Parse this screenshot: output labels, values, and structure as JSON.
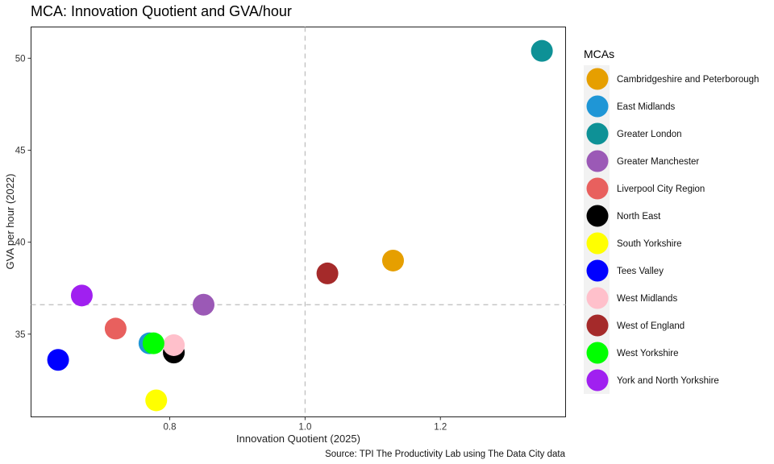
{
  "chart_data": {
    "type": "scatter",
    "title": "MCA: Innovation Quotient and GVA/hour",
    "xlabel": "Innovation Quotient (2025)",
    "ylabel": "GVA per hour (2022)",
    "xlim": [
      0.595,
      1.385
    ],
    "ylim": [
      30.5,
      51.7
    ],
    "x_ticks": [
      0.8,
      1.0,
      1.2
    ],
    "x_tick_labels": [
      "0.8",
      "1.0",
      "1.2"
    ],
    "y_ticks": [
      35,
      40,
      45,
      50
    ],
    "y_tick_labels": [
      "35",
      "40",
      "45",
      "50"
    ],
    "grid": false,
    "reference_lines": {
      "x": 1.0,
      "y": 36.6
    },
    "legend_title": "MCAs",
    "legend_position": "right",
    "caption": "Source: TPI The Productivity Lab using The Data City data",
    "series": [
      {
        "name": "Cambridgeshire and Peterborough",
        "color": "#E69F00",
        "x": 1.13,
        "y": 39.0
      },
      {
        "name": "East Midlands",
        "color": "#1F96D6",
        "x": 0.77,
        "y": 34.5
      },
      {
        "name": "Greater London",
        "color": "#0E9196",
        "x": 1.35,
        "y": 50.4
      },
      {
        "name": "Greater Manchester",
        "color": "#9B59B6",
        "x": 0.85,
        "y": 36.6
      },
      {
        "name": "Liverpool City Region",
        "color": "#E8605E",
        "x": 0.72,
        "y": 35.3
      },
      {
        "name": "North East",
        "color": "#000000",
        "x": 0.806,
        "y": 34.0
      },
      {
        "name": "South Yorkshire",
        "color": "#FFFF00",
        "x": 0.78,
        "y": 31.4
      },
      {
        "name": "Tees Valley",
        "color": "#0000FF",
        "x": 0.635,
        "y": 33.6
      },
      {
        "name": "West Midlands",
        "color": "#FFC0CB",
        "x": 0.806,
        "y": 34.4
      },
      {
        "name": "West of England",
        "color": "#A52A2A",
        "x": 1.033,
        "y": 38.3
      },
      {
        "name": "West Yorkshire",
        "color": "#00FF00",
        "x": 0.776,
        "y": 34.5
      },
      {
        "name": "York and North Yorkshire",
        "color": "#A020F0",
        "x": 0.67,
        "y": 37.1
      }
    ]
  }
}
